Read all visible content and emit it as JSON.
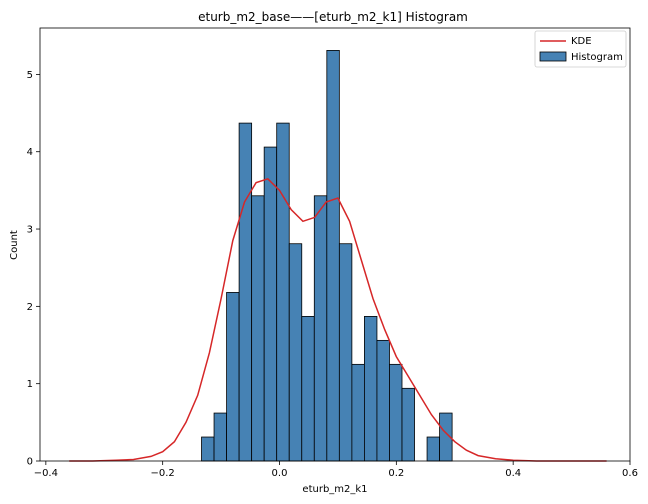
{
  "chart_data": {
    "type": "bar",
    "title": "eturb_m2_base——[eturb_m2_k1] Histogram",
    "xlabel": "eturb_m2_k1",
    "ylabel": "Count",
    "xlim": [
      -0.41,
      0.6
    ],
    "ylim": [
      0,
      5.6
    ],
    "xticks": [
      -0.4,
      -0.2,
      0.0,
      0.2,
      0.4,
      0.6
    ],
    "xtick_labels": [
      "−0.4",
      "−0.2",
      "0.0",
      "0.2",
      "0.4",
      "0.6"
    ],
    "yticks": [
      0,
      1,
      2,
      3,
      4,
      5
    ],
    "yticklabels": [
      "0",
      "1",
      "2",
      "3",
      "4",
      "5"
    ],
    "grid": false,
    "legend": {
      "placement": "top-right",
      "entries": [
        {
          "label": "KDE",
          "kind": "line",
          "color": "#d62728"
        },
        {
          "label": "Histogram",
          "kind": "patch",
          "color": "#4682b4"
        }
      ]
    },
    "histogram": {
      "name": "Histogram",
      "color": "#4682b4",
      "edgecolor": "#000000",
      "bin_start": -0.1335,
      "bin_width": 0.02145,
      "values": [
        0.31,
        0.62,
        2.18,
        4.37,
        3.43,
        4.06,
        4.37,
        2.81,
        1.87,
        3.43,
        5.31,
        2.81,
        1.25,
        1.87,
        1.56,
        1.25,
        0.94,
        0.0,
        0.31,
        0.62
      ]
    },
    "kde": {
      "name": "KDE",
      "color": "#d62728",
      "x": [
        -0.36,
        -0.32,
        -0.28,
        -0.25,
        -0.22,
        -0.2,
        -0.18,
        -0.16,
        -0.14,
        -0.12,
        -0.1,
        -0.08,
        -0.06,
        -0.04,
        -0.02,
        0.0,
        0.02,
        0.04,
        0.06,
        0.08,
        0.1,
        0.12,
        0.14,
        0.16,
        0.18,
        0.2,
        0.22,
        0.24,
        0.26,
        0.28,
        0.3,
        0.32,
        0.34,
        0.37,
        0.4,
        0.44,
        0.5,
        0.56
      ],
      "y": [
        0.0,
        0.0,
        0.01,
        0.02,
        0.06,
        0.12,
        0.25,
        0.5,
        0.85,
        1.4,
        2.1,
        2.85,
        3.35,
        3.6,
        3.65,
        3.5,
        3.25,
        3.1,
        3.15,
        3.35,
        3.4,
        3.1,
        2.6,
        2.1,
        1.7,
        1.35,
        1.1,
        0.85,
        0.6,
        0.4,
        0.25,
        0.14,
        0.07,
        0.03,
        0.01,
        0.0,
        0.0,
        0.0
      ]
    }
  }
}
